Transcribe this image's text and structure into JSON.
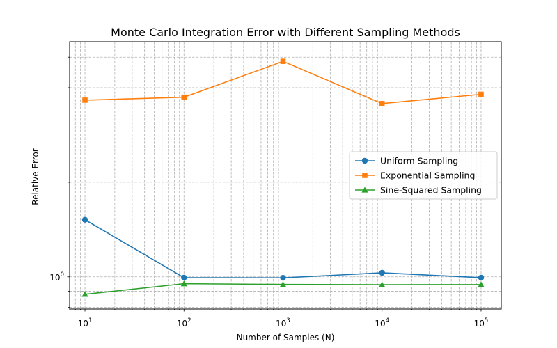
{
  "chart_data": {
    "type": "line",
    "title": "Monte Carlo Integration Error with Different Sampling Methods",
    "xlabel": "Number of Samples (N)",
    "ylabel": "Relative Error",
    "xscale": "log",
    "yscale": "log",
    "xlim": [
      7,
      160000
    ],
    "ylim": [
      0.79,
      5.6
    ],
    "x": [
      10,
      100,
      1000,
      10000,
      100000
    ],
    "x_tick_labels": [
      {
        "base": "10",
        "exp": "1"
      },
      {
        "base": "10",
        "exp": "2"
      },
      {
        "base": "10",
        "exp": "3"
      },
      {
        "base": "10",
        "exp": "4"
      },
      {
        "base": "10",
        "exp": "5"
      }
    ],
    "y_tick_labels": [
      {
        "value": 1,
        "base": "10",
        "exp": "0"
      }
    ],
    "grid": true,
    "legend_position": "center-right",
    "series": [
      {
        "name": "Uniform Sampling",
        "color": "#1f77b4",
        "marker": "circle",
        "values": [
          1.52,
          0.994,
          0.993,
          1.03,
          0.994
        ]
      },
      {
        "name": "Exponential Sampling",
        "color": "#ff7f0e",
        "marker": "square",
        "values": [
          3.65,
          3.73,
          4.85,
          3.56,
          3.81
        ]
      },
      {
        "name": "Sine-Squared Sampling",
        "color": "#2ca02c",
        "marker": "triangle",
        "values": [
          0.88,
          0.951,
          0.946,
          0.944,
          0.945
        ]
      }
    ]
  }
}
